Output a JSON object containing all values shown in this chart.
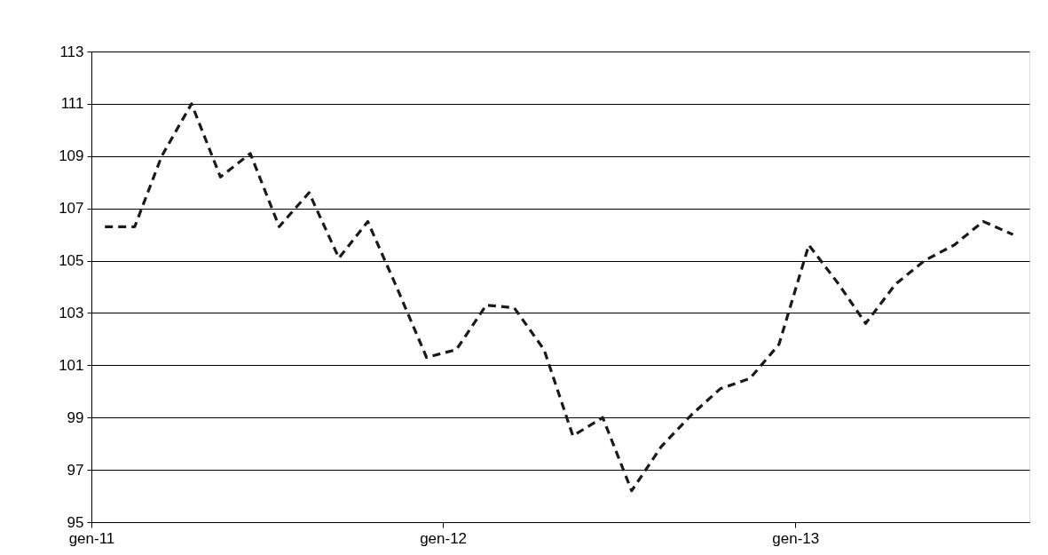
{
  "chart_data": {
    "type": "line",
    "line_style": "dashed",
    "marker": "none",
    "grid": "y",
    "legend": false,
    "x": [
      "2011-01-15",
      "2011-02-15",
      "2011-03-15",
      "2011-04-15",
      "2011-05-15",
      "2011-06-15",
      "2011-07-15",
      "2011-08-15",
      "2011-09-15",
      "2011-10-15",
      "2011-11-15",
      "2011-12-15",
      "2012-01-15",
      "2012-02-15",
      "2012-03-15",
      "2012-04-15",
      "2012-05-15",
      "2012-06-15",
      "2012-07-15",
      "2012-08-15",
      "2012-09-15",
      "2012-10-15",
      "2012-11-15",
      "2012-12-15",
      "2013-01-15",
      "2013-02-15",
      "2013-03-15",
      "2013-04-15",
      "2013-05-15",
      "2013-06-15",
      "2013-07-15",
      "2013-08-15"
    ],
    "series": [
      {
        "color": "#1a1a1a",
        "values": [
          106.3,
          106.3,
          109.0,
          111.0,
          108.2,
          109.1,
          106.3,
          107.6,
          105.1,
          106.5,
          103.9,
          101.3,
          101.6,
          103.3,
          103.2,
          101.6,
          98.3,
          99.0,
          96.2,
          97.9,
          99.1,
          100.1,
          100.5,
          101.8,
          105.6,
          104.1,
          102.6,
          104.1,
          105.0,
          105.6,
          106.5,
          106.0
        ]
      }
    ],
    "xlim": [
      "2011-01-01",
      "2013-09-01"
    ],
    "xticks": [
      {
        "value": "2011-01-01",
        "label": "gen-11"
      },
      {
        "value": "2012-01-01",
        "label": "gen-12"
      },
      {
        "value": "2013-01-01",
        "label": "gen-13"
      }
    ],
    "ylim": [
      95,
      113
    ],
    "yticks": [
      95,
      97,
      99,
      101,
      103,
      105,
      107,
      109,
      111,
      113
    ]
  }
}
